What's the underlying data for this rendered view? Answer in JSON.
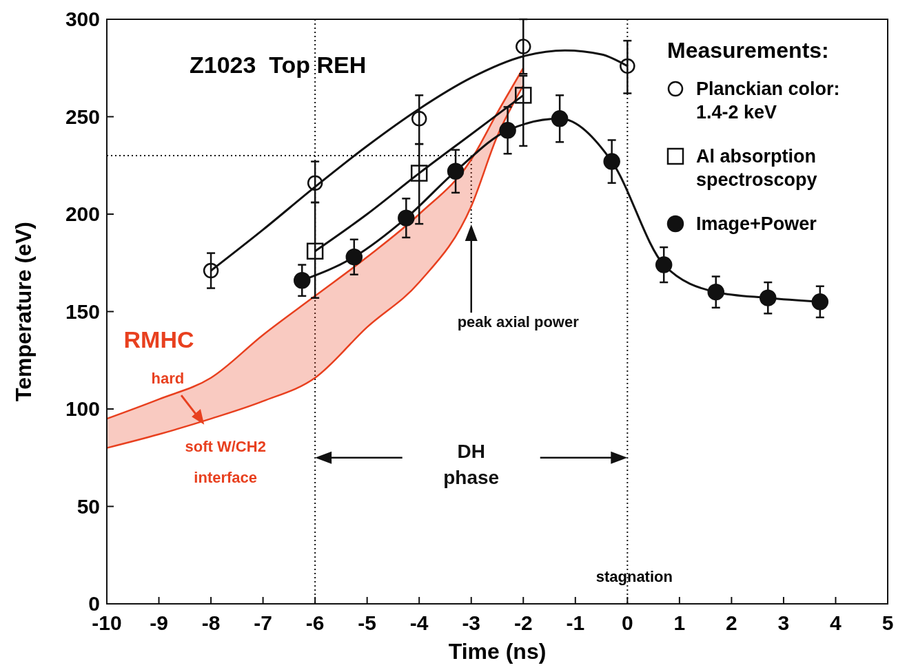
{
  "chart_data": {
    "type": "scatter",
    "title": "Z1023  Top REH",
    "xlabel": "Time (ns)",
    "ylabel": "Temperature (eV)",
    "legend_title": "Measurements:",
    "legend": "top right",
    "xlim": [
      -10,
      5
    ],
    "ylim": [
      0,
      300
    ],
    "xticks": [
      -10,
      -9,
      -8,
      -7,
      -6,
      -5,
      -4,
      -3,
      -2,
      -1,
      0,
      1,
      2,
      3,
      4,
      5
    ],
    "yticks": [
      0,
      50,
      100,
      150,
      200,
      250,
      300
    ],
    "series": [
      {
        "type": "line",
        "name": "RMHC",
        "color": "#e8401f",
        "marker": "none",
        "x": [
          -10,
          -9,
          -8,
          -7,
          -6,
          -5,
          -4,
          -3,
          -2.5,
          -2
        ],
        "values": [
          95,
          105,
          116,
          138,
          158,
          178,
          200,
          228,
          252,
          275
        ]
      },
      {
        "type": "line",
        "color": "#e8401f",
        "marker": "none",
        "x": [
          -10,
          -9,
          -8,
          -7,
          -6,
          -5,
          -4,
          -3,
          -2.5,
          -2
        ],
        "values": [
          80,
          87,
          95,
          104,
          116,
          142,
          165,
          204,
          240,
          266
        ]
      },
      {
        "type": "line",
        "color": "#111111",
        "marker": "none",
        "x": [
          -8,
          -7,
          -6,
          -5,
          -4,
          -3,
          -2,
          -1.2,
          -0.5,
          0
        ],
        "values": [
          171,
          192,
          214,
          235,
          254,
          270,
          281,
          284,
          282,
          276
        ]
      },
      {
        "type": "line",
        "color": "#111111",
        "marker": "none",
        "x": [
          -6,
          -5,
          -4,
          -3,
          -2
        ],
        "values": [
          181,
          200,
          221,
          241,
          261
        ]
      },
      {
        "name": "Planckian color: 1.4-2 keV",
        "color": "#111111",
        "marker": "circle",
        "x": [
          -8,
          -6,
          -4,
          -2,
          0
        ],
        "values": [
          171,
          216,
          249,
          286,
          276
        ],
        "errors": [
          [
            162,
            180
          ],
          [
            206,
            227
          ],
          [
            236,
            261
          ],
          [
            272,
            300
          ],
          [
            262,
            289
          ]
        ]
      },
      {
        "name": "Al absorption spectroscopy",
        "color": "#111111",
        "marker": "square",
        "x": [
          -6,
          -4,
          -2
        ],
        "values": [
          181,
          221,
          261
        ],
        "errors": [
          [
            157,
            206
          ],
          [
            195,
            236
          ],
          [
            235,
            271
          ]
        ]
      },
      {
        "type": "line",
        "name": "Image+Power",
        "color": "#111111",
        "marker": "circle",
        "x": [
          -6.25,
          -5.25,
          -4.25,
          -3.3,
          -2.3,
          -1.3,
          -0.3,
          0.7,
          1.7,
          2.7,
          3.7
        ],
        "values": [
          166,
          178,
          198,
          222,
          243,
          249,
          227,
          174,
          160,
          157,
          155
        ],
        "errors": [
          8,
          9,
          10,
          11,
          12,
          12,
          11,
          9,
          8,
          8,
          8
        ]
      }
    ],
    "ref_lines": [
      {
        "axis": "x",
        "value": -6,
        "line_style": "dotted"
      },
      {
        "axis": "x",
        "value": 0,
        "label": "stagnation",
        "line_style": "dotted"
      },
      {
        "axis": "x",
        "value": -3,
        "line_style": "dotted"
      },
      {
        "axis": "y",
        "value": 230,
        "line_style": "dotted"
      }
    ],
    "annotations": [
      "hard",
      "soft W/CH2 interface",
      "DH phase",
      "peak axial power"
    ]
  }
}
